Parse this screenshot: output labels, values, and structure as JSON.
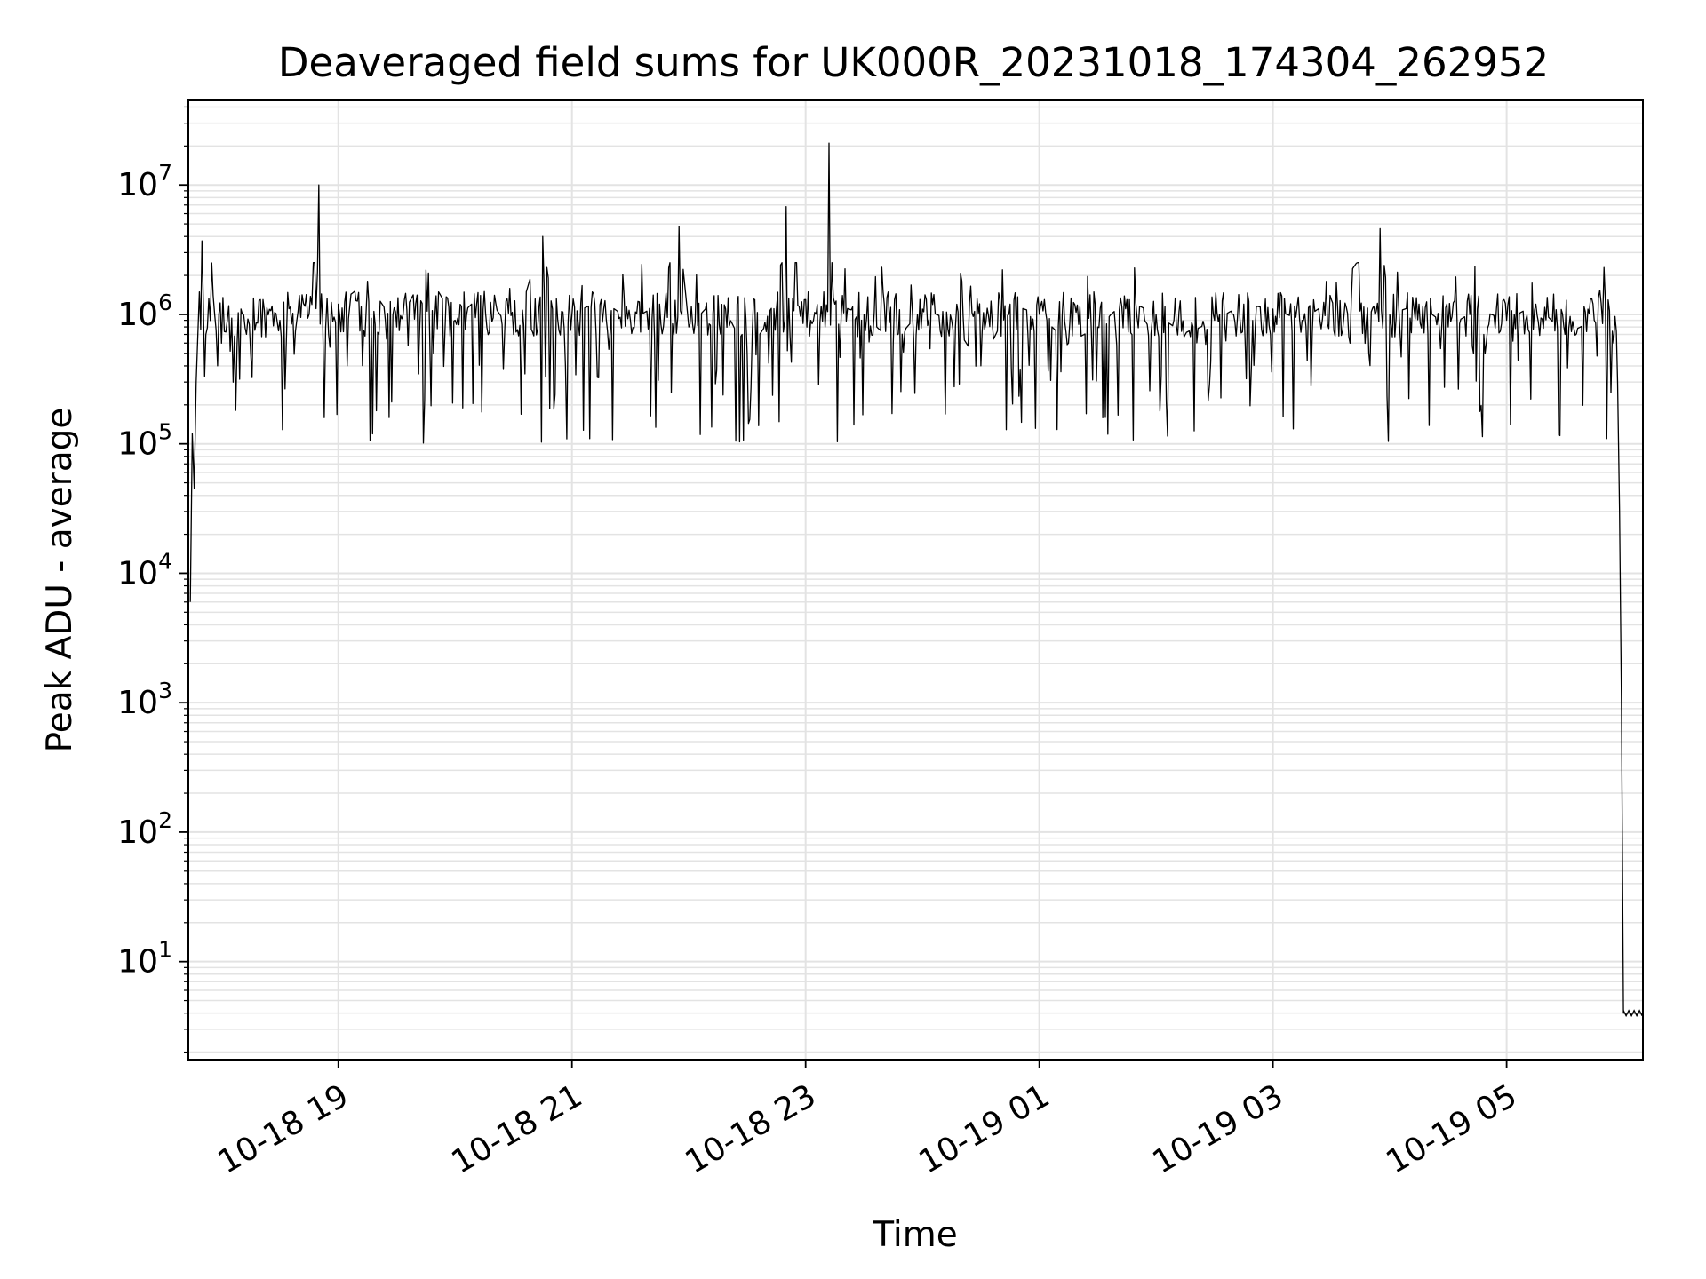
{
  "chart_data": {
    "type": "line",
    "title": "Deaveraged field sums for UK000R_20231018_174304_262952",
    "xlabel": "Time",
    "ylabel": "Peak ADU - average",
    "yscale": "log",
    "grid": true,
    "grid_minor": true,
    "line_color": "#000000",
    "grid_color": "#e3e3e3",
    "x_range": [
      "2023-10-18 17:43",
      "2023-10-19 06:10"
    ],
    "y_range": [
      1.75,
      45000000
    ],
    "x_ticks": [
      {
        "value": "2023-10-18 19:00",
        "label": "10-18 19"
      },
      {
        "value": "2023-10-18 21:00",
        "label": "10-18 21"
      },
      {
        "value": "2023-10-18 23:00",
        "label": "10-18 23"
      },
      {
        "value": "2023-10-19 01:00",
        "label": "10-19 01"
      },
      {
        "value": "2023-10-19 03:00",
        "label": "10-19 03"
      },
      {
        "value": "2023-10-19 05:00",
        "label": "10-19 05"
      }
    ],
    "y_ticks": [
      {
        "value": 10,
        "base": "10",
        "exp": "1"
      },
      {
        "value": 100,
        "base": "10",
        "exp": "2"
      },
      {
        "value": 1000,
        "base": "10",
        "exp": "3"
      },
      {
        "value": 10000,
        "base": "10",
        "exp": "4"
      },
      {
        "value": 100000,
        "base": "10",
        "exp": "5"
      },
      {
        "value": 1000000,
        "base": "10",
        "exp": "6"
      },
      {
        "value": 10000000,
        "base": "10",
        "exp": "7"
      }
    ],
    "series": [
      {
        "x": [
          "2023-10-18 17:44",
          "2023-10-18 17:45",
          "2023-10-18 17:46",
          "2023-10-18 17:47",
          "2023-10-18 17:48",
          "2023-10-18 17:50",
          "2023-10-18 17:52",
          "2023-10-18 17:55",
          "2023-10-18 17:58",
          "2023-10-18 18:00",
          "2023-10-18 18:03",
          "2023-10-18 18:06",
          "2023-10-18 18:10",
          "2023-10-18 18:15",
          "2023-10-18 18:20",
          "2023-10-18 18:30",
          "2023-10-18 18:40",
          "2023-10-18 18:45",
          "2023-10-18 18:50",
          "2023-10-18 18:52",
          "2023-10-18 18:55",
          "2023-10-18 19:00",
          "2023-10-18 19:15",
          "2023-10-18 19:30",
          "2023-10-18 19:45",
          "2023-10-18 20:00",
          "2023-10-18 20:15",
          "2023-10-18 20:30",
          "2023-10-18 20:45",
          "2023-10-18 20:50",
          "2023-10-18 21:00",
          "2023-10-18 21:15",
          "2023-10-18 21:30",
          "2023-10-18 21:45",
          "2023-10-18 21:55",
          "2023-10-18 22:00",
          "2023-10-18 22:15",
          "2023-10-18 22:30",
          "2023-10-18 22:45",
          "2023-10-18 22:50",
          "2023-10-18 23:00",
          "2023-10-18 23:10",
          "2023-10-18 23:12",
          "2023-10-18 23:15",
          "2023-10-18 23:30",
          "2023-10-18 23:45",
          "2023-10-19 00:00",
          "2023-10-19 00:15",
          "2023-10-19 00:30",
          "2023-10-19 00:45",
          "2023-10-19 01:00",
          "2023-10-19 01:15",
          "2023-10-19 01:30",
          "2023-10-19 01:45",
          "2023-10-19 02:00",
          "2023-10-19 02:15",
          "2023-10-19 02:30",
          "2023-10-19 02:45",
          "2023-10-19 03:00",
          "2023-10-19 03:15",
          "2023-10-19 03:30",
          "2023-10-19 03:55",
          "2023-10-19 04:00",
          "2023-10-19 04:15",
          "2023-10-19 04:30",
          "2023-10-19 04:45",
          "2023-10-19 05:00",
          "2023-10-19 05:15",
          "2023-10-19 05:30",
          "2023-10-19 05:45",
          "2023-10-19 05:50",
          "2023-10-19 05:55",
          "2023-10-19 05:57",
          "2023-10-19 05:58",
          "2023-10-19 05:59",
          "2023-10-19 06:00",
          "2023-10-19 06:05",
          "2023-10-19 06:10"
        ],
        "y": [
          6000,
          120000,
          45000,
          300000,
          800000,
          3700000,
          700000,
          2500000,
          400000,
          600000,
          900000,
          300000,
          1100000,
          500000,
          1300000,
          900000,
          1400000,
          1000000,
          10000000,
          900000,
          700000,
          1200000,
          1800000,
          800000,
          2200000,
          900000,
          1500000,
          700000,
          4000000,
          1100000,
          1000000,
          1300000,
          900000,
          1200000,
          4800000,
          800000,
          1400000,
          500000,
          1100000,
          6800000,
          1300000,
          800000,
          21000000,
          1200000,
          1000000,
          600000,
          1100000,
          900000,
          400000,
          1200000,
          1000000,
          600000,
          800000,
          1300000,
          1000000,
          700000,
          900000,
          1200000,
          1100000,
          900000,
          1300000,
          4600000,
          1000000,
          1200000,
          800000,
          1100000,
          900000,
          1200000,
          700000,
          900000,
          2300000,
          600000,
          300000,
          30000,
          900,
          4,
          4,
          4
        ]
      }
    ]
  }
}
